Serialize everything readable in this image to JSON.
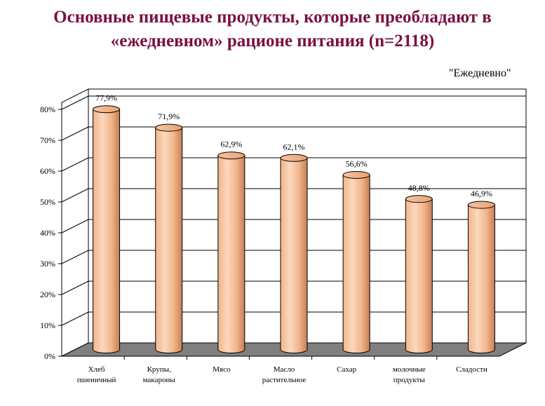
{
  "chart_data": {
    "type": "bar",
    "title_line1": "Основные пищевые продукты, которые преобладают в",
    "title_line2": "«ежедневном» рационе питания (n=2118)",
    "legend": "\"Ежедневно\"",
    "categories": [
      [
        "Хлеб",
        "пшеничный"
      ],
      [
        "Крупы,",
        "макароны"
      ],
      [
        "Мясо"
      ],
      [
        "Масло",
        "растительное"
      ],
      [
        "Сахар"
      ],
      [
        "молочные",
        "продукты"
      ],
      [
        "Сладости"
      ]
    ],
    "values": [
      77.9,
      71.9,
      62.9,
      62.1,
      56.6,
      48.8,
      46.9
    ],
    "labels": [
      "77,9%",
      "71,9%",
      "62,9%",
      "62,1%",
      "56,6%",
      "48,8%",
      "46,9%"
    ],
    "yticks": [
      "0%",
      "10%",
      "20%",
      "30%",
      "40%",
      "50%",
      "60%",
      "70%",
      "80%"
    ],
    "ylim": [
      0,
      80
    ],
    "colors": {
      "bar_light": "#fbd8bd",
      "bar_mid": "#f2b48a",
      "bar_dark": "#c47e55",
      "floor": "#7f7f7f",
      "title": "#7a1040"
    }
  }
}
